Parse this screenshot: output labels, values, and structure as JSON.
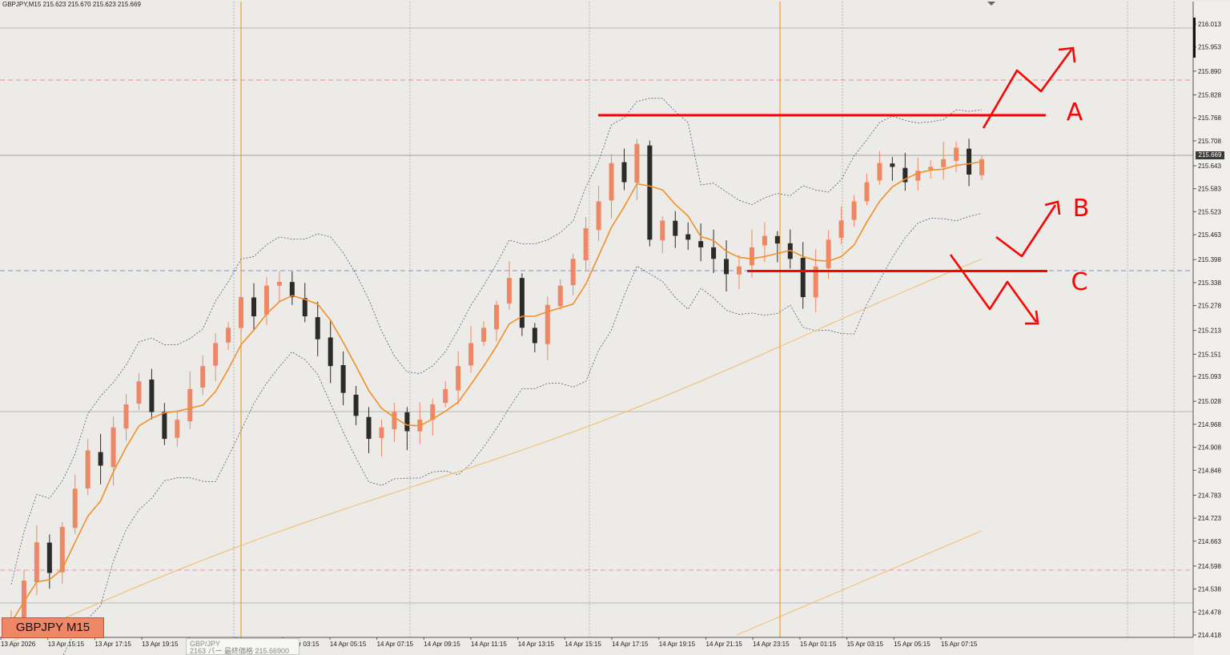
{
  "header": {
    "symbol_info": "GBPJPY,M15",
    "ohlc": "215.623 215.670 215.623 215.669"
  },
  "current_price": "215.669",
  "badge": "GBPJPY M15",
  "tooltip": {
    "line1": "GBP/JPY",
    "line2": "2163 バー 最終価格 215.66900"
  },
  "annotations": {
    "A": "A",
    "B": "B",
    "C": "C"
  },
  "colors": {
    "background": "#ecebe7",
    "bull_candle": "#ee8766",
    "bear_candle": "#2b2b2b",
    "ma_short": "#f0902a",
    "ma_long": "#f5b55c",
    "bands": "#4a5a80",
    "annotation": "#ff0000",
    "vertical_marker": "#f0a030"
  },
  "chart_data": {
    "type": "candlestick",
    "symbol": "GBPJPY",
    "timeframe": "M15",
    "y_ticks": [
      "216.013",
      "215.953",
      "215.890",
      "215.828",
      "215.768",
      "215.708",
      "215.643",
      "215.583",
      "215.523",
      "215.463",
      "215.398",
      "215.338",
      "215.278",
      "215.213",
      "215.151",
      "215.093",
      "215.028",
      "214.968",
      "214.908",
      "214.848",
      "214.783",
      "214.723",
      "214.663",
      "214.598",
      "214.538",
      "214.478",
      "214.418"
    ],
    "ylim": [
      214.418,
      216.013
    ],
    "x_ticks": [
      "13 Apr 2026",
      "13 Apr 15:15",
      "13 Apr 17:15",
      "13 Apr 19:15",
      "13 Apr 21:15",
      "14 Apr 01:15",
      "14 Apr 03:15",
      "14 Apr 05:15",
      "14 Apr 07:15",
      "14 Apr 09:15",
      "14 Apr 11:15",
      "14 Apr 13:15",
      "14 Apr 15:15",
      "14 Apr 17:15",
      "14 Apr 19:15",
      "14 Apr 21:15",
      "14 Apr 23:15",
      "15 Apr 01:15",
      "15 Apr 03:15",
      "15 Apr 05:15",
      "15 Apr 07:15"
    ],
    "key_levels": {
      "resistance_A": 215.775,
      "support_C": 215.368
    },
    "close_path": [
      214.45,
      214.56,
      214.66,
      214.58,
      214.7,
      214.8,
      214.9,
      214.86,
      214.96,
      215.02,
      215.08,
      215.0,
      214.93,
      214.98,
      215.06,
      215.12,
      215.18,
      215.22,
      215.3,
      215.25,
      215.33,
      215.34,
      215.3,
      215.25,
      215.19,
      215.12,
      215.05,
      214.99,
      214.93,
      214.96,
      215.0,
      214.95,
      214.98,
      215.02,
      215.06,
      215.12,
      215.18,
      215.22,
      215.28,
      215.35,
      215.22,
      215.18,
      215.28,
      215.33,
      215.4,
      215.48,
      215.55,
      215.65,
      215.6,
      215.7,
      215.45,
      215.5,
      215.46,
      215.45,
      215.43,
      215.4,
      215.36,
      215.38,
      215.43,
      215.46,
      215.44,
      215.4,
      215.3,
      215.38,
      215.45,
      215.5,
      215.55,
      215.6,
      215.65,
      215.64,
      215.6,
      215.63,
      215.64,
      215.66,
      215.69,
      215.62,
      215.66
    ]
  }
}
